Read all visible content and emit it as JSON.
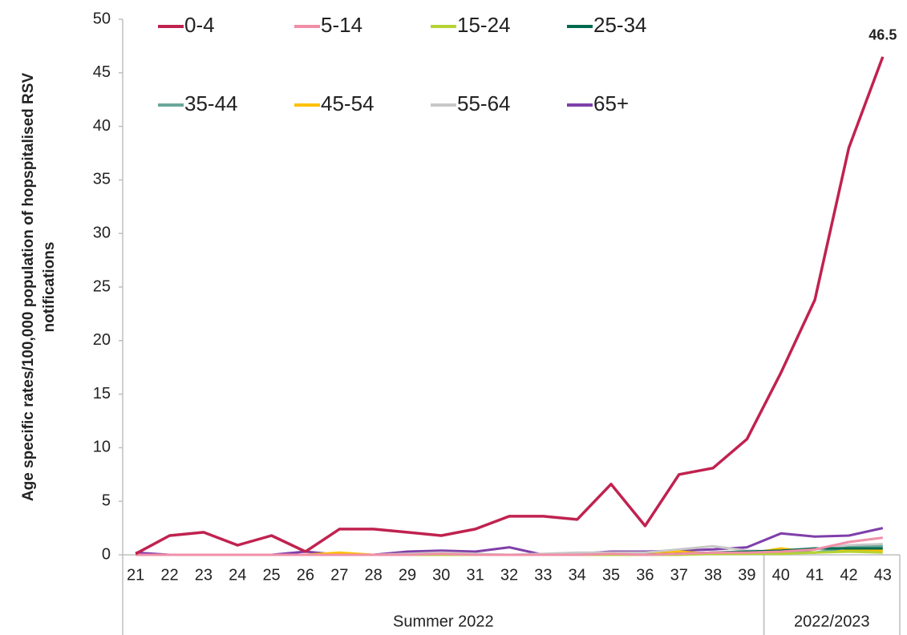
{
  "chart_data": {
    "type": "line",
    "ylabel": [
      "Age specific rates/100,000 population of hopspitalised  RSV",
      "notifications"
    ],
    "categories": [
      "21",
      "22",
      "23",
      "24",
      "25",
      "26",
      "27",
      "28",
      "29",
      "30",
      "31",
      "32",
      "33",
      "34",
      "35",
      "36",
      "37",
      "38",
      "39",
      "40",
      "41",
      "42",
      "43"
    ],
    "groups": [
      {
        "label": "Summer 2022",
        "from": "21",
        "to": "39"
      },
      {
        "label": "2022/2023",
        "from": "40",
        "to": "43"
      }
    ],
    "ylim": [
      0,
      50
    ],
    "yticks": [
      0,
      5,
      10,
      15,
      20,
      25,
      30,
      35,
      40,
      45,
      50
    ],
    "series": [
      {
        "name": "0-4",
        "color": "#c0224f",
        "label_last": true,
        "values": [
          0.1,
          1.8,
          2.1,
          0.9,
          1.8,
          0.3,
          2.4,
          2.4,
          2.1,
          1.8,
          2.4,
          3.6,
          3.6,
          3.3,
          6.6,
          2.7,
          7.5,
          8.1,
          10.8,
          17,
          23.8,
          38,
          46.5
        ]
      },
      {
        "name": "5-14",
        "color": "#f08fa8",
        "values": [
          0,
          0,
          0,
          0,
          0,
          0,
          0,
          0,
          0,
          0.1,
          0,
          0,
          0,
          0,
          0.1,
          0,
          0.1,
          0.2,
          0.2,
          0.3,
          0.5,
          1.2,
          1.6
        ]
      },
      {
        "name": "15-24",
        "color": "#b5d334",
        "values": [
          0,
          0,
          0,
          0,
          0,
          0,
          0,
          0,
          0,
          0,
          0,
          0,
          0,
          0,
          0,
          0,
          0,
          0.1,
          0.1,
          0.1,
          0.2,
          0.3,
          0.2
        ]
      },
      {
        "name": "25-34",
        "color": "#006a4e",
        "values": [
          0,
          0,
          0,
          0,
          0,
          0,
          0,
          0,
          0,
          0,
          0,
          0,
          0,
          0,
          0,
          0,
          0.1,
          0.2,
          0.3,
          0.4,
          0.6,
          0.6,
          0.6
        ]
      },
      {
        "name": "35-44",
        "color": "#6ba89a",
        "values": [
          0,
          0,
          0,
          0,
          0,
          0,
          0,
          0,
          0,
          0,
          0,
          0,
          0,
          0,
          0,
          0,
          0.1,
          0.2,
          0.3,
          0.3,
          0.2,
          0.7,
          0.8
        ]
      },
      {
        "name": "45-54",
        "color": "#ffc000",
        "values": [
          0,
          0,
          0,
          0,
          0,
          0,
          0.2,
          0,
          0,
          0,
          0,
          0,
          0,
          0,
          0,
          0,
          0.3,
          0.1,
          0.1,
          0.6,
          0.2,
          0.4,
          0.4
        ]
      },
      {
        "name": "55-64",
        "color": "#c8c8c8",
        "values": [
          0,
          0,
          0,
          0,
          0,
          0,
          0,
          0,
          0.1,
          0.2,
          0.1,
          0,
          0.1,
          0.2,
          0.2,
          0.2,
          0.5,
          0.8,
          0.4,
          0.3,
          0.5,
          0.9,
          1.0
        ]
      },
      {
        "name": "65+",
        "color": "#7f3fa9",
        "values": [
          0.2,
          0,
          0,
          0,
          0,
          0.3,
          0,
          0,
          0.3,
          0.4,
          0.3,
          0.7,
          0,
          0.1,
          0.3,
          0.3,
          0.4,
          0.5,
          0.7,
          2.0,
          1.7,
          1.8,
          2.5
        ]
      }
    ]
  }
}
